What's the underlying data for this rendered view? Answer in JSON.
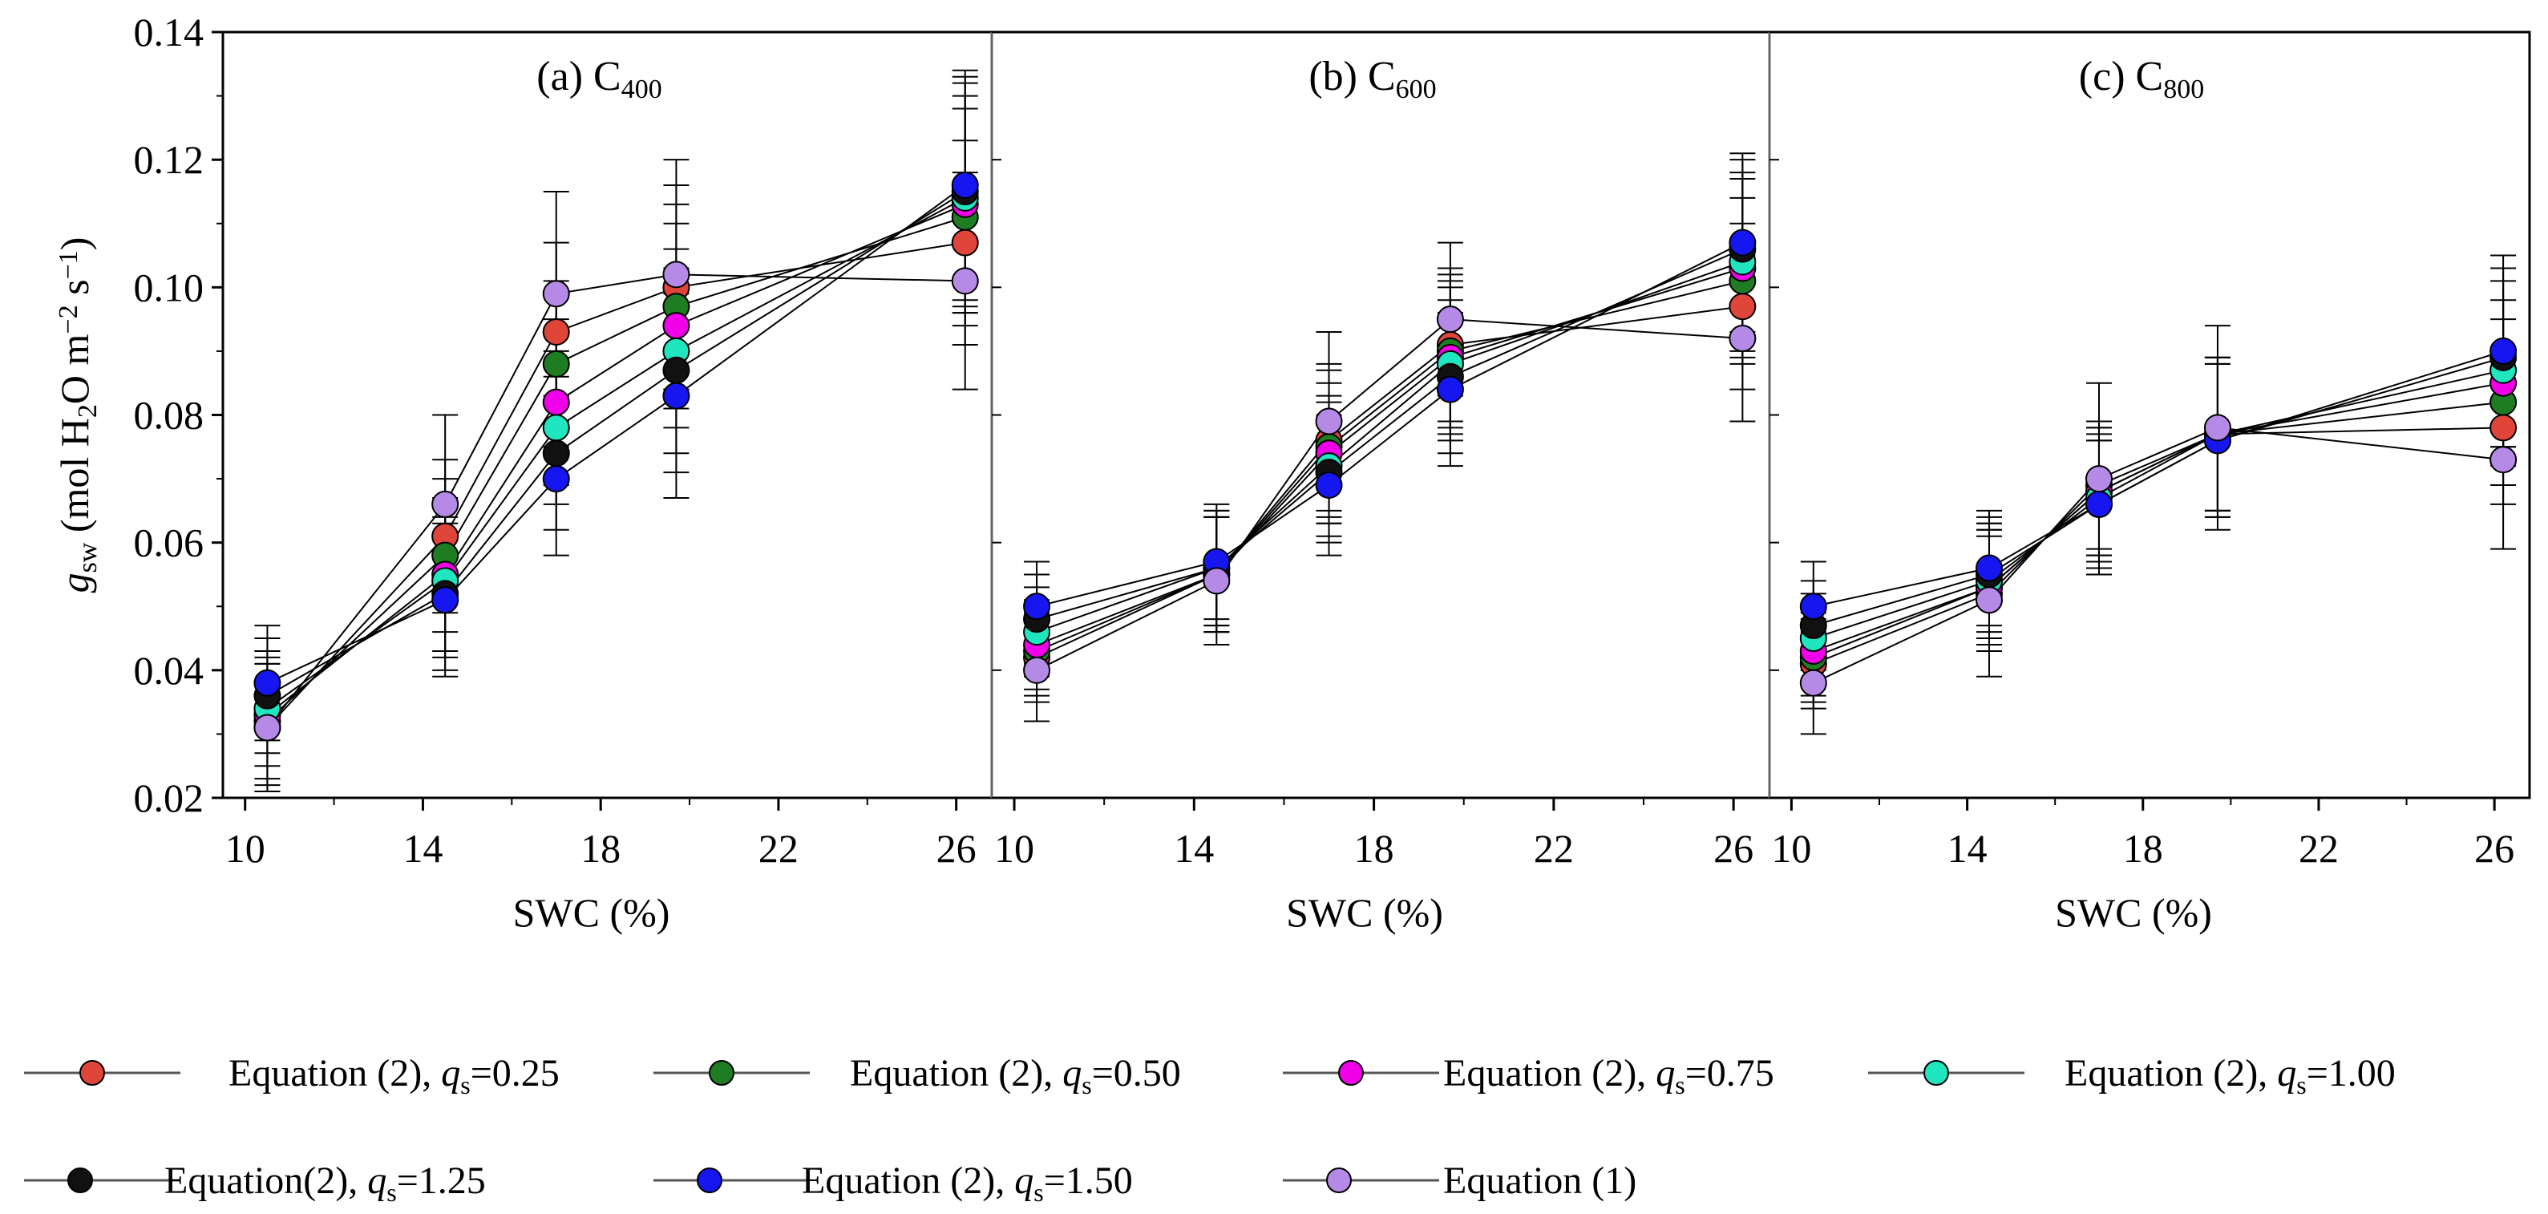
{
  "chart_data": {
    "type": "line",
    "ylabel": {
      "symbol": "g",
      "symbol_sub": "sw",
      "unit_open": "(mol H",
      "unit_h2o_sub": "2",
      "unit_mid": "O m",
      "unit_exp1": "−2",
      "unit_s": " s",
      "unit_exp2": "−1",
      "unit_close": ")"
    },
    "xlabel": "SWC (%)",
    "ylim": [
      0.02,
      0.14
    ],
    "yticks": [
      "0.02",
      "0.04",
      "0.06",
      "0.08",
      "0.10",
      "0.12",
      "0.14"
    ],
    "xlim": [
      9.5,
      26.8
    ],
    "xticks": [
      "10",
      "14",
      "18",
      "22",
      "26"
    ],
    "x": [
      10.5,
      14.5,
      17,
      19.7,
      26.2
    ],
    "series": [
      {
        "key": "q025",
        "name": "Equation (2), q",
        "name_sub": "s",
        "name_tail": "=0.25",
        "color": "#e0453a"
      },
      {
        "key": "q050",
        "name": "Equation (2), q",
        "name_sub": "s",
        "name_tail": "=0.50",
        "color": "#1e7d22"
      },
      {
        "key": "q075",
        "name": "Equation (2), q",
        "name_sub": "s",
        "name_tail": "=0.75",
        "color": "#f000e8"
      },
      {
        "key": "q100",
        "name": "Equation (2), q",
        "name_sub": "s",
        "name_tail": "=1.00",
        "color": "#20e6c0"
      },
      {
        "key": "q125",
        "name": "Equation(2), q",
        "name_sub": "s",
        "name_tail": "=1.25",
        "color": "#111111"
      },
      {
        "key": "q150",
        "name": "Equation (2), q",
        "name_sub": "s",
        "name_tail": "=1.50",
        "color": "#1616f0"
      },
      {
        "key": "eq1",
        "name": "Equation (1)",
        "name_sub": "",
        "name_tail": "",
        "color": "#b58ae6"
      }
    ],
    "panels": [
      {
        "title": "(a) C",
        "title_sub": "400",
        "values": {
          "q025": [
            0.031,
            0.061,
            0.093,
            0.1,
            0.107
          ],
          "q050": [
            0.032,
            0.058,
            0.088,
            0.097,
            0.111
          ],
          "q075": [
            0.033,
            0.055,
            0.082,
            0.094,
            0.113
          ],
          "q100": [
            0.034,
            0.054,
            0.078,
            0.09,
            0.114
          ],
          "q125": [
            0.036,
            0.052,
            0.074,
            0.087,
            0.115
          ],
          "q150": [
            0.038,
            0.051,
            0.07,
            0.083,
            0.116
          ],
          "eq1": [
            0.031,
            0.066,
            0.099,
            0.102,
            0.101
          ]
        },
        "errors": {
          "q025": [
            0.01,
            0.012,
            0.014,
            0.016,
            0.016
          ],
          "q050": [
            0.01,
            0.012,
            0.013,
            0.016,
            0.017
          ],
          "q075": [
            0.01,
            0.012,
            0.013,
            0.016,
            0.017
          ],
          "q100": [
            0.009,
            0.012,
            0.012,
            0.016,
            0.018
          ],
          "q125": [
            0.009,
            0.012,
            0.012,
            0.016,
            0.018
          ],
          "q150": [
            0.009,
            0.012,
            0.012,
            0.016,
            0.018
          ],
          "eq1": [
            0.01,
            0.014,
            0.016,
            0.018,
            0.017
          ]
        }
      },
      {
        "title": "(b) C",
        "title_sub": "600",
        "values": {
          "q025": [
            0.042,
            0.055,
            0.076,
            0.091,
            0.097
          ],
          "q050": [
            0.043,
            0.055,
            0.075,
            0.09,
            0.101
          ],
          "q075": [
            0.044,
            0.055,
            0.074,
            0.089,
            0.103
          ],
          "q100": [
            0.046,
            0.056,
            0.072,
            0.088,
            0.104
          ],
          "q125": [
            0.048,
            0.056,
            0.071,
            0.086,
            0.106
          ],
          "q150": [
            0.05,
            0.057,
            0.069,
            0.084,
            0.107
          ],
          "eq1": [
            0.04,
            0.054,
            0.079,
            0.095,
            0.092
          ]
        },
        "errors": {
          "q025": [
            0.007,
            0.009,
            0.012,
            0.012,
            0.013
          ],
          "q050": [
            0.007,
            0.009,
            0.012,
            0.012,
            0.013
          ],
          "q075": [
            0.007,
            0.009,
            0.011,
            0.012,
            0.014
          ],
          "q100": [
            0.007,
            0.009,
            0.011,
            0.012,
            0.014
          ],
          "q125": [
            0.007,
            0.009,
            0.011,
            0.012,
            0.014
          ],
          "q150": [
            0.007,
            0.009,
            0.011,
            0.012,
            0.014
          ],
          "eq1": [
            0.008,
            0.01,
            0.014,
            0.012,
            0.013
          ]
        }
      },
      {
        "title": "(c) C",
        "title_sub": "800",
        "values": {
          "q025": [
            0.041,
            0.052,
            0.069,
            0.077,
            0.078
          ],
          "q050": [
            0.042,
            0.053,
            0.068,
            0.077,
            0.082
          ],
          "q075": [
            0.043,
            0.053,
            0.068,
            0.077,
            0.085
          ],
          "q100": [
            0.045,
            0.054,
            0.067,
            0.077,
            0.087
          ],
          "q125": [
            0.047,
            0.055,
            0.066,
            0.076,
            0.089
          ],
          "q150": [
            0.05,
            0.056,
            0.066,
            0.076,
            0.09
          ],
          "eq1": [
            0.038,
            0.051,
            0.07,
            0.078,
            0.073
          ]
        },
        "errors": {
          "q025": [
            0.007,
            0.009,
            0.01,
            0.012,
            0.012
          ],
          "q050": [
            0.007,
            0.009,
            0.01,
            0.012,
            0.013
          ],
          "q075": [
            0.007,
            0.009,
            0.01,
            0.012,
            0.013
          ],
          "q100": [
            0.007,
            0.009,
            0.01,
            0.012,
            0.014
          ],
          "q125": [
            0.007,
            0.009,
            0.01,
            0.012,
            0.014
          ],
          "q150": [
            0.007,
            0.009,
            0.01,
            0.012,
            0.015
          ],
          "eq1": [
            0.008,
            0.012,
            0.015,
            0.016,
            0.014
          ]
        }
      }
    ],
    "legend": {
      "placement": "bottom",
      "rows": [
        [
          "q025",
          "q050",
          "q075",
          "q100"
        ],
        [
          "q125",
          "q150",
          "eq1"
        ]
      ]
    }
  }
}
